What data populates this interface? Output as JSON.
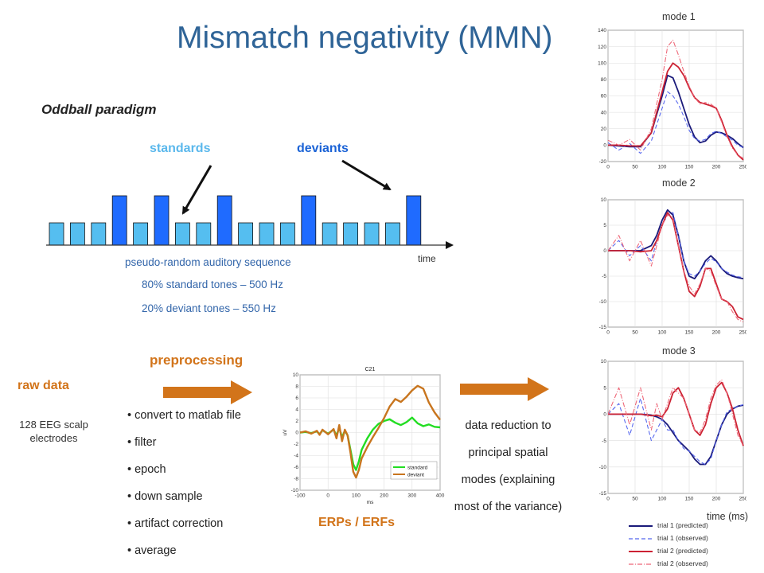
{
  "title": "Mismatch negativity (MMN)",
  "oddball_heading": "Oddball paradigm",
  "standards_label": "standards",
  "deviants_label": "deviants",
  "time_label": "time",
  "sequence": {
    "pattern": [
      "s",
      "s",
      "s",
      "d",
      "s",
      "d",
      "s",
      "s",
      "d",
      "s",
      "s",
      "s",
      "d",
      "s",
      "s",
      "s",
      "s",
      "d"
    ],
    "desc": "pseudo-random auditory sequence",
    "standard_line": "80% standard tones – 500 Hz",
    "deviant_line": "20% deviant tones – 550 Hz",
    "colors": {
      "standard": "#55bef0",
      "deviant": "#1f6bff"
    }
  },
  "pipeline": {
    "raw_data": "raw data",
    "electrodes": "128 EEG scalp electrodes",
    "preprocessing": "preprocessing",
    "steps": [
      "convert to matlab file",
      "filter",
      "epoch",
      "down sample",
      "artifact correction",
      "average"
    ],
    "erps": "ERPs / ERFs",
    "reduction": "data reduction to principal spatial modes (explaining most of the variance)",
    "arrow_color": "#d2741a"
  },
  "chart_data": [
    {
      "type": "line",
      "title": "C21",
      "xlabel": "ms",
      "ylabel": "uV",
      "xlim": [
        -100,
        400
      ],
      "ylim": [
        -10,
        10
      ],
      "xticks": [
        "-100",
        "0",
        "100",
        "200",
        "300",
        "400"
      ],
      "yticks": [
        "-10",
        "-8",
        "-6",
        "-4",
        "-2",
        "0",
        "2",
        "4",
        "6",
        "8",
        "10"
      ],
      "grid": true,
      "legend": "bottom-right",
      "series": [
        {
          "name": "standard",
          "color": "#22dd22",
          "x": [
            -100,
            -80,
            -60,
            -40,
            -30,
            -20,
            0,
            20,
            30,
            40,
            50,
            60,
            70,
            80,
            90,
            100,
            110,
            120,
            140,
            160,
            180,
            200,
            220,
            240,
            260,
            280,
            300,
            320,
            340,
            360,
            380,
            400
          ],
          "y": [
            0,
            0.1,
            -0.1,
            0.2,
            -0.3,
            0.4,
            -0.2,
            0.5,
            -0.5,
            0.8,
            -0.8,
            0.3,
            -0.5,
            -3,
            -5.5,
            -6.5,
            -5,
            -3,
            -1,
            0.5,
            1.5,
            2,
            2.3,
            1.7,
            1.3,
            1.8,
            2.6,
            1.6,
            1.1,
            1.4,
            1.0,
            0.9
          ]
        },
        {
          "name": "deviant",
          "color": "#c8751e",
          "x": [
            -100,
            -80,
            -60,
            -40,
            -30,
            -20,
            0,
            20,
            30,
            40,
            50,
            60,
            70,
            80,
            90,
            100,
            110,
            120,
            140,
            160,
            180,
            200,
            220,
            240,
            260,
            280,
            300,
            320,
            340,
            360,
            380,
            400
          ],
          "y": [
            0,
            0.2,
            -0.2,
            0.3,
            -0.4,
            0.5,
            -0.3,
            0.6,
            -1,
            1.3,
            -1.5,
            0.5,
            -0.5,
            -3.5,
            -6.8,
            -7.8,
            -6.5,
            -4.5,
            -2.5,
            -0.8,
            0.8,
            2.5,
            4.5,
            5.8,
            5.3,
            6.2,
            7.3,
            8.1,
            7.6,
            5.2,
            3.5,
            2.2
          ]
        }
      ]
    },
    {
      "type": "line",
      "title": "mode 1",
      "xlim": [
        0,
        250
      ],
      "ylim": [
        -20,
        140
      ],
      "xticks": [
        "0",
        "50",
        "100",
        "150",
        "200",
        "250"
      ],
      "yticks": [
        "-20",
        "0",
        "20",
        "40",
        "60",
        "80",
        "100",
        "120",
        "140"
      ],
      "grid": true,
      "series": [
        {
          "name": "trial 1 (predicted)",
          "color": "#1a1a7a",
          "dash": "solid",
          "x": [
            0,
            20,
            40,
            60,
            80,
            100,
            110,
            120,
            130,
            140,
            150,
            160,
            170,
            180,
            190,
            200,
            210,
            220,
            230,
            240,
            250
          ],
          "y": [
            0,
            -1,
            -2,
            -2,
            15,
            60,
            85,
            82,
            65,
            45,
            25,
            10,
            3,
            5,
            12,
            16,
            15,
            12,
            8,
            2,
            -3
          ]
        },
        {
          "name": "trial 1 (observed)",
          "color": "#5566ee",
          "dash": "dashed",
          "x": [
            0,
            20,
            40,
            60,
            80,
            100,
            110,
            120,
            130,
            140,
            150,
            160,
            170,
            180,
            190,
            200,
            210,
            220,
            230,
            240,
            250
          ],
          "y": [
            3,
            -6,
            2,
            -10,
            5,
            45,
            65,
            60,
            50,
            35,
            18,
            8,
            5,
            7,
            14,
            17,
            14,
            10,
            6,
            0,
            -3
          ]
        },
        {
          "name": "trial 2 (predicted)",
          "color": "#cc2233",
          "dash": "solid",
          "x": [
            0,
            20,
            40,
            60,
            80,
            100,
            110,
            120,
            130,
            140,
            150,
            160,
            170,
            180,
            190,
            200,
            210,
            220,
            230,
            240,
            250
          ],
          "y": [
            0,
            0,
            -1,
            -1,
            15,
            65,
            90,
            100,
            95,
            85,
            70,
            58,
            52,
            50,
            48,
            45,
            30,
            12,
            -2,
            -12,
            -18
          ]
        },
        {
          "name": "trial 2 (observed)",
          "color": "#ee6677",
          "dash": "dashdot",
          "x": [
            0,
            20,
            40,
            60,
            80,
            100,
            110,
            120,
            130,
            140,
            150,
            160,
            170,
            180,
            190,
            200,
            210,
            220,
            230,
            240,
            250
          ],
          "y": [
            6,
            0,
            7,
            -6,
            20,
            80,
            120,
            128,
            110,
            90,
            72,
            58,
            50,
            52,
            50,
            45,
            28,
            10,
            -4,
            -12,
            -16
          ]
        }
      ]
    },
    {
      "type": "line",
      "title": "mode 2",
      "xlim": [
        0,
        250
      ],
      "ylim": [
        -15,
        10
      ],
      "xticks": [
        "0",
        "50",
        "100",
        "150",
        "200",
        "250"
      ],
      "yticks": [
        "-15",
        "-10",
        "-5",
        "0",
        "5",
        "10"
      ],
      "grid": true,
      "series": [
        {
          "name": "trial 1 (predicted)",
          "color": "#1a1a7a",
          "dash": "solid",
          "x": [
            0,
            20,
            40,
            60,
            80,
            90,
            100,
            110,
            120,
            130,
            140,
            150,
            160,
            170,
            180,
            190,
            200,
            210,
            220,
            230,
            240,
            250
          ],
          "y": [
            0,
            0,
            0,
            0,
            1,
            3,
            6,
            8,
            7,
            3,
            -2,
            -5,
            -5.5,
            -4,
            -2,
            -1,
            -2,
            -3.5,
            -4.5,
            -5,
            -5.3,
            -5.5
          ]
        },
        {
          "name": "trial 1 (observed)",
          "color": "#5566ee",
          "dash": "dashed",
          "x": [
            0,
            20,
            40,
            60,
            80,
            90,
            100,
            110,
            120,
            130,
            140,
            150,
            160,
            170,
            180,
            190,
            200,
            210,
            220,
            230,
            240,
            250
          ],
          "y": [
            0,
            2,
            -1,
            1,
            -2,
            2,
            5,
            7,
            7.5,
            3,
            -2,
            -4.5,
            -5,
            -4,
            -2.5,
            -1.5,
            -2.2,
            -3.5,
            -4.2,
            -4.8,
            -5.1,
            -5.3
          ]
        },
        {
          "name": "trial 2 (predicted)",
          "color": "#cc2233",
          "dash": "solid",
          "x": [
            0,
            20,
            40,
            60,
            80,
            90,
            100,
            110,
            120,
            130,
            140,
            150,
            160,
            170,
            180,
            190,
            200,
            210,
            220,
            230,
            240,
            250
          ],
          "y": [
            0,
            0,
            0,
            -0.2,
            0,
            2,
            5,
            7.5,
            6,
            1,
            -4,
            -8,
            -9,
            -7,
            -3.5,
            -3.5,
            -6.5,
            -9.5,
            -10,
            -11,
            -13,
            -13.5
          ]
        },
        {
          "name": "trial 2 (observed)",
          "color": "#ee6677",
          "dash": "dashdot",
          "x": [
            0,
            20,
            40,
            60,
            80,
            90,
            100,
            110,
            120,
            130,
            140,
            150,
            160,
            170,
            180,
            190,
            200,
            210,
            220,
            230,
            240,
            250
          ],
          "y": [
            0,
            3,
            -2,
            2,
            -3,
            1,
            5,
            7,
            6.5,
            1,
            -4,
            -7,
            -8.5,
            -6.5,
            -3.5,
            -4,
            -7,
            -9.5,
            -10,
            -12,
            -13.5,
            -14
          ]
        }
      ]
    },
    {
      "type": "line",
      "title": "mode 3",
      "xlim": [
        0,
        250
      ],
      "ylim": [
        -15,
        10
      ],
      "xticks": [
        "0",
        "50",
        "100",
        "150",
        "200",
        "250"
      ],
      "yticks": [
        "-15",
        "-10",
        "-5",
        "0",
        "5",
        "10"
      ],
      "grid": true,
      "series": [
        {
          "name": "trial 1 (predicted)",
          "color": "#1a1a7a",
          "dash": "solid",
          "x": [
            0,
            20,
            40,
            60,
            80,
            90,
            100,
            110,
            120,
            130,
            140,
            150,
            160,
            170,
            180,
            190,
            200,
            210,
            220,
            230,
            240,
            250
          ],
          "y": [
            0,
            0,
            0,
            0,
            -0.2,
            -0.5,
            -1,
            -2,
            -3.5,
            -5,
            -6,
            -7,
            -8.5,
            -9.5,
            -9.5,
            -8,
            -5,
            -2,
            0,
            1,
            1.5,
            1.7
          ]
        },
        {
          "name": "trial 1 (observed)",
          "color": "#5566ee",
          "dash": "dashed",
          "x": [
            0,
            20,
            40,
            60,
            80,
            90,
            100,
            110,
            120,
            130,
            140,
            150,
            160,
            170,
            180,
            190,
            200,
            210,
            220,
            230,
            240,
            250
          ],
          "y": [
            0,
            2,
            -4,
            3,
            -5,
            -3,
            -1,
            -3,
            -3,
            -5,
            -6.5,
            -7,
            -8,
            -9,
            -9.5,
            -8.5,
            -5,
            -2,
            0.5,
            1,
            1.5,
            1.8
          ]
        },
        {
          "name": "trial 2 (predicted)",
          "color": "#cc2233",
          "dash": "solid",
          "x": [
            0,
            20,
            40,
            60,
            80,
            90,
            100,
            110,
            120,
            130,
            140,
            150,
            160,
            170,
            180,
            190,
            200,
            210,
            220,
            230,
            240,
            250
          ],
          "y": [
            0,
            0,
            0,
            0,
            -0.3,
            -0.2,
            -0.5,
            1,
            4,
            5,
            3,
            0,
            -3,
            -4,
            -2,
            2,
            5,
            6,
            4,
            1,
            -3,
            -6
          ]
        },
        {
          "name": "trial 2 (observed)",
          "color": "#ee6677",
          "dash": "dashdot",
          "x": [
            0,
            20,
            40,
            60,
            80,
            90,
            100,
            110,
            120,
            130,
            140,
            150,
            160,
            170,
            180,
            190,
            200,
            210,
            220,
            230,
            240,
            250
          ],
          "y": [
            0,
            5,
            -2,
            5,
            -3,
            2,
            -1,
            2,
            5,
            4,
            3,
            0,
            -3,
            -3.5,
            -1,
            3,
            5.5,
            6.5,
            4,
            0,
            -4,
            -6
          ]
        }
      ]
    }
  ],
  "mode_labels": [
    "mode 1",
    "mode 2",
    "mode 3"
  ],
  "modes_xlabel": "time (ms)",
  "legend_items": [
    {
      "label": "trial 1 (predicted)",
      "color": "#1a1a7a",
      "dash": "solid"
    },
    {
      "label": "trial 1 (observed)",
      "color": "#5566ee",
      "dash": "dashed"
    },
    {
      "label": "trial 2 (predicted)",
      "color": "#cc2233",
      "dash": "solid"
    },
    {
      "label": "trial 2 (observed)",
      "color": "#ee6677",
      "dash": "dashdot"
    }
  ]
}
